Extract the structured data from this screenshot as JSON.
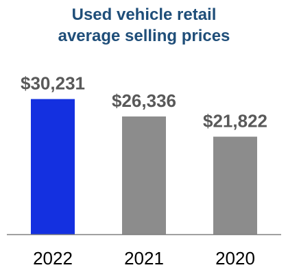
{
  "chart_data": {
    "type": "bar",
    "title_lines": [
      "Used vehicle retail",
      "average selling prices"
    ],
    "categories": [
      "2022",
      "2021",
      "2020"
    ],
    "values": [
      30231,
      26336,
      21822
    ],
    "value_labels": [
      "$30,231",
      "$26,336",
      "$21,822"
    ],
    "ylim": [
      0,
      34000
    ],
    "bar_colors": [
      "#1430e0",
      "#8c8c8c",
      "#8c8c8c"
    ],
    "title_color": "#1f4e79",
    "label_color": "#595959",
    "axis_color": "#7f7f7f",
    "grid": false,
    "legend": "none"
  }
}
